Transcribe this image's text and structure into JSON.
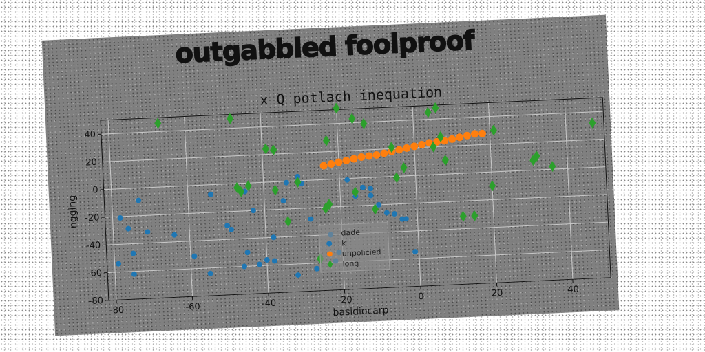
{
  "heading": "outgabbled foolproof",
  "chart_data": {
    "type": "scatter",
    "title": "x Q potlach inequation",
    "xlabel": "basidiocarp",
    "ylabel": "ngging",
    "xlim": [
      -82,
      50
    ],
    "ylim": [
      -80,
      50
    ],
    "xticks": [
      -80,
      -60,
      -40,
      -20,
      0,
      20,
      40
    ],
    "yticks": [
      -80,
      -60,
      -40,
      -20,
      0,
      20,
      40
    ],
    "grid": true,
    "legend_position": "lower-center",
    "series": [
      {
        "name": "dade",
        "color": "#1f77b4",
        "marker": "circle",
        "points": []
      },
      {
        "name": "k",
        "color": "#1f77b4",
        "marker": "circle",
        "points": [
          [
            -79,
            -54
          ],
          [
            -78,
            -21
          ],
          [
            -76,
            -29
          ],
          [
            -75,
            -62
          ],
          [
            -75,
            -47
          ],
          [
            -73,
            -9
          ],
          [
            -71,
            -32
          ],
          [
            -64,
            -35
          ],
          [
            -59,
            -51
          ],
          [
            -55,
            -64
          ],
          [
            -54,
            -7
          ],
          [
            -50,
            -30
          ],
          [
            -49,
            -33
          ],
          [
            -46,
            -60
          ],
          [
            -45,
            -50
          ],
          [
            -45,
            -6
          ],
          [
            -43,
            -20
          ],
          [
            -42,
            -59
          ],
          [
            -40,
            -56
          ],
          [
            -38,
            -57
          ],
          [
            -38,
            -40
          ],
          [
            -35,
            -14
          ],
          [
            -34,
            -1
          ],
          [
            -32,
            -68
          ],
          [
            -31,
            3
          ],
          [
            -30,
            -2
          ],
          [
            -28,
            -28
          ],
          [
            -27,
            -64
          ],
          [
            -23,
            -40
          ],
          [
            -22,
            -59
          ],
          [
            -21,
            -53
          ],
          [
            -18,
            -1
          ],
          [
            -16,
            -13
          ],
          [
            -14,
            -7
          ],
          [
            -12,
            -8
          ],
          [
            -12,
            -13
          ],
          [
            -10,
            -20
          ],
          [
            -8,
            -26
          ],
          [
            -6,
            -27
          ],
          [
            -4,
            -31
          ],
          [
            -3,
            -31
          ],
          [
            -1,
            -55
          ]
        ]
      },
      {
        "name": "unpolicied",
        "color": "#ff7f0e",
        "marker": "circle",
        "points": [
          [
            -24,
            10
          ],
          [
            -22,
            11
          ],
          [
            -20,
            12
          ],
          [
            -18,
            13
          ],
          [
            -16,
            14
          ],
          [
            -14,
            15
          ],
          [
            -12,
            15.5
          ],
          [
            -10,
            16
          ],
          [
            -8,
            17
          ],
          [
            -6,
            18
          ],
          [
            -4,
            19
          ],
          [
            -2,
            20
          ],
          [
            0,
            21
          ],
          [
            2,
            22
          ],
          [
            4,
            23
          ],
          [
            6,
            23.5
          ],
          [
            8,
            24
          ],
          [
            10,
            25
          ],
          [
            12,
            26
          ],
          [
            14,
            27
          ],
          [
            16,
            28
          ],
          [
            18,
            28
          ]
        ]
      },
      {
        "name": "long",
        "color": "#2ca02c",
        "marker": "diamond",
        "points": [
          [
            -67,
            46
          ],
          [
            -48,
            47
          ],
          [
            -39,
            24
          ],
          [
            -37,
            23
          ],
          [
            -37,
            -6
          ],
          [
            -34,
            -29
          ],
          [
            -31,
            -1
          ],
          [
            -23,
            28
          ],
          [
            -24,
            -21
          ],
          [
            -23,
            -18
          ],
          [
            -20,
            51
          ],
          [
            -16,
            43
          ],
          [
            -16,
            -10
          ],
          [
            -13,
            39
          ],
          [
            -11,
            -23
          ],
          [
            -6,
            21
          ],
          [
            -5,
            -1
          ],
          [
            -3,
            6
          ],
          [
            4,
            45
          ],
          [
            5,
            20
          ],
          [
            6,
            48
          ],
          [
            7,
            27
          ],
          [
            8,
            10
          ],
          [
            12,
            -31
          ],
          [
            15,
            -31
          ],
          [
            20,
            -10
          ],
          [
            21,
            30
          ],
          [
            31,
            7
          ],
          [
            32,
            10
          ],
          [
            36,
            2
          ],
          [
            47,
            32
          ],
          [
            -47,
            -3
          ],
          [
            -46,
            -6
          ],
          [
            -44,
            -2
          ],
          [
            -26,
            -57
          ]
        ]
      }
    ]
  }
}
